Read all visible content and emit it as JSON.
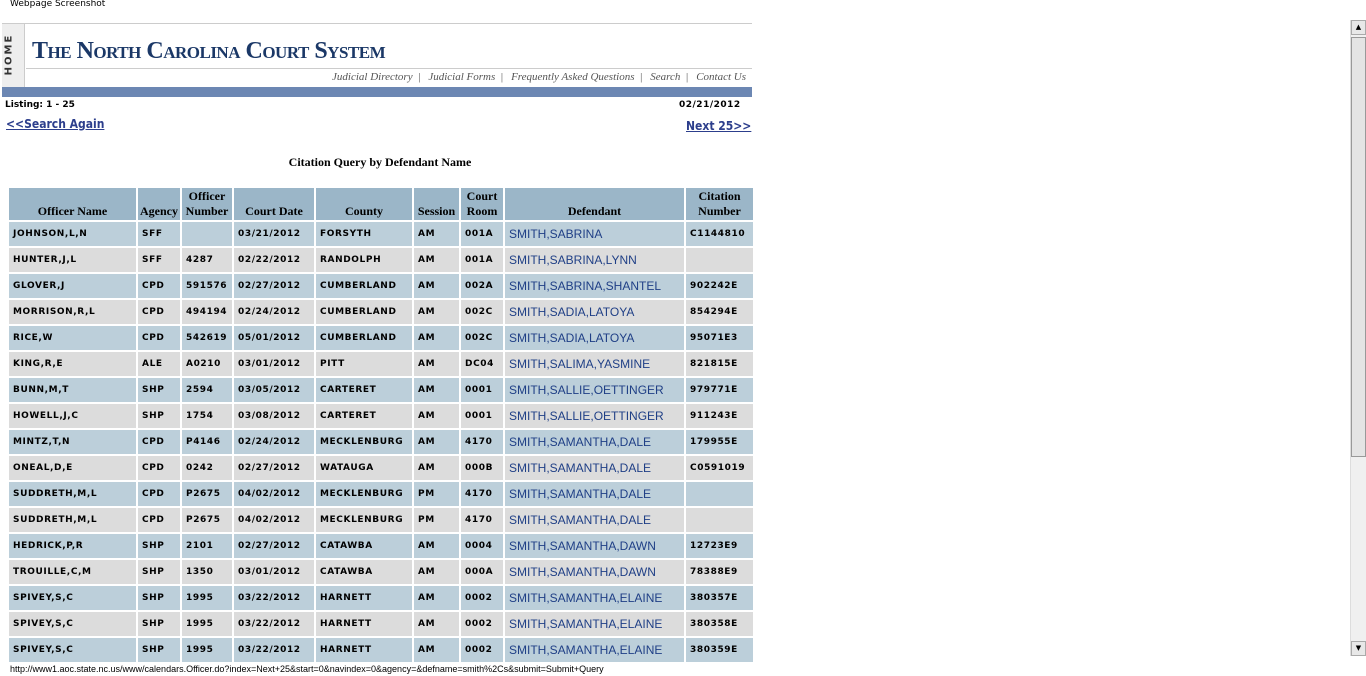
{
  "caption": "Webpage Screenshot",
  "header": {
    "home_label": "HOME",
    "logo_text": "The North Carolina Court System",
    "nav": [
      "Judicial Directory",
      "Judicial Forms",
      "Frequently Asked Questions",
      "Search",
      "Contact Us"
    ]
  },
  "listing": "Listing: 1 - 25",
  "date": "02/21/2012",
  "search_again": "<<Search Again",
  "next": "Next 25>>",
  "title": "Citation Query by Defendant Name",
  "table": {
    "columns": [
      "Officer Name",
      "Agency",
      "Officer Number",
      "Court Date",
      "County",
      "Session",
      "Court Room",
      "Defendant",
      "Citation Number"
    ],
    "rows": [
      [
        "JOHNSON,L,N",
        "SFF",
        "",
        "03/21/2012",
        "FORSYTH",
        "AM",
        "001A",
        "SMITH,SABRINA",
        "C1144810"
      ],
      [
        "HUNTER,J,L",
        "SFF",
        "4287",
        "02/22/2012",
        "RANDOLPH",
        "AM",
        "001A",
        "SMITH,SABRINA,LYNN",
        ""
      ],
      [
        "GLOVER,J",
        "CPD",
        "591576",
        "02/27/2012",
        "CUMBERLAND",
        "AM",
        "002A",
        "SMITH,SABRINA,SHANTEL",
        "902242E"
      ],
      [
        "MORRISON,R,L",
        "CPD",
        "494194",
        "02/24/2012",
        "CUMBERLAND",
        "AM",
        "002C",
        "SMITH,SADIA,LATOYA",
        "854294E"
      ],
      [
        "RICE,W",
        "CPD",
        "542619",
        "05/01/2012",
        "CUMBERLAND",
        "AM",
        "002C",
        "SMITH,SADIA,LATOYA",
        "95071E3"
      ],
      [
        "KING,R,E",
        "ALE",
        "A0210",
        "03/01/2012",
        "PITT",
        "AM",
        "DC04",
        "SMITH,SALIMA,YASMINE",
        "821815E"
      ],
      [
        "BUNN,M,T",
        "SHP",
        "2594",
        "03/05/2012",
        "CARTERET",
        "AM",
        "0001",
        "SMITH,SALLIE,OETTINGER",
        "979771E"
      ],
      [
        "HOWELL,J,C",
        "SHP",
        "1754",
        "03/08/2012",
        "CARTERET",
        "AM",
        "0001",
        "SMITH,SALLIE,OETTINGER",
        "911243E"
      ],
      [
        "MINTZ,T,N",
        "CPD",
        "P4146",
        "02/24/2012",
        "MECKLENBURG",
        "AM",
        "4170",
        "SMITH,SAMANTHA,DALE",
        "179955E"
      ],
      [
        "ONEAL,D,E",
        "CPD",
        "0242",
        "02/27/2012",
        "WATAUGA",
        "AM",
        "000B",
        "SMITH,SAMANTHA,DALE",
        "C0591019"
      ],
      [
        "SUDDRETH,M,L",
        "CPD",
        "P2675",
        "04/02/2012",
        "MECKLENBURG",
        "PM",
        "4170",
        "SMITH,SAMANTHA,DALE",
        ""
      ],
      [
        "SUDDRETH,M,L",
        "CPD",
        "P2675",
        "04/02/2012",
        "MECKLENBURG",
        "PM",
        "4170",
        "SMITH,SAMANTHA,DALE",
        ""
      ],
      [
        "HEDRICK,P,R",
        "SHP",
        "2101",
        "02/27/2012",
        "CATAWBA",
        "AM",
        "0004",
        "SMITH,SAMANTHA,DAWN",
        "12723E9"
      ],
      [
        "TROUILLE,C,M",
        "SHP",
        "1350",
        "03/01/2012",
        "CATAWBA",
        "AM",
        "000A",
        "SMITH,SAMANTHA,DAWN",
        "78388E9"
      ],
      [
        "SPIVEY,S,C",
        "SHP",
        "1995",
        "03/22/2012",
        "HARNETT",
        "AM",
        "0002",
        "SMITH,SAMANTHA,ELAINE",
        "380357E"
      ],
      [
        "SPIVEY,S,C",
        "SHP",
        "1995",
        "03/22/2012",
        "HARNETT",
        "AM",
        "0002",
        "SMITH,SAMANTHA,ELAINE",
        "380358E"
      ],
      [
        "SPIVEY,S,C",
        "SHP",
        "1995",
        "03/22/2012",
        "HARNETT",
        "AM",
        "0002",
        "SMITH,SAMANTHA,ELAINE",
        "380359E"
      ]
    ]
  },
  "status_url": "http://www1.aoc.state.nc.us/www/calendars.Officer.do?index=Next+25&start=0&navindex=0&agency=&defname=smith%2Cs&submit=Submit+Query",
  "colors": {
    "nav_bar": "#6c87b3",
    "header_cell": "#9bb6c8",
    "row_odd": "#bccfda",
    "row_even": "#dcdcdc",
    "link": "#2c3e8c",
    "logo": "#1b3867"
  }
}
